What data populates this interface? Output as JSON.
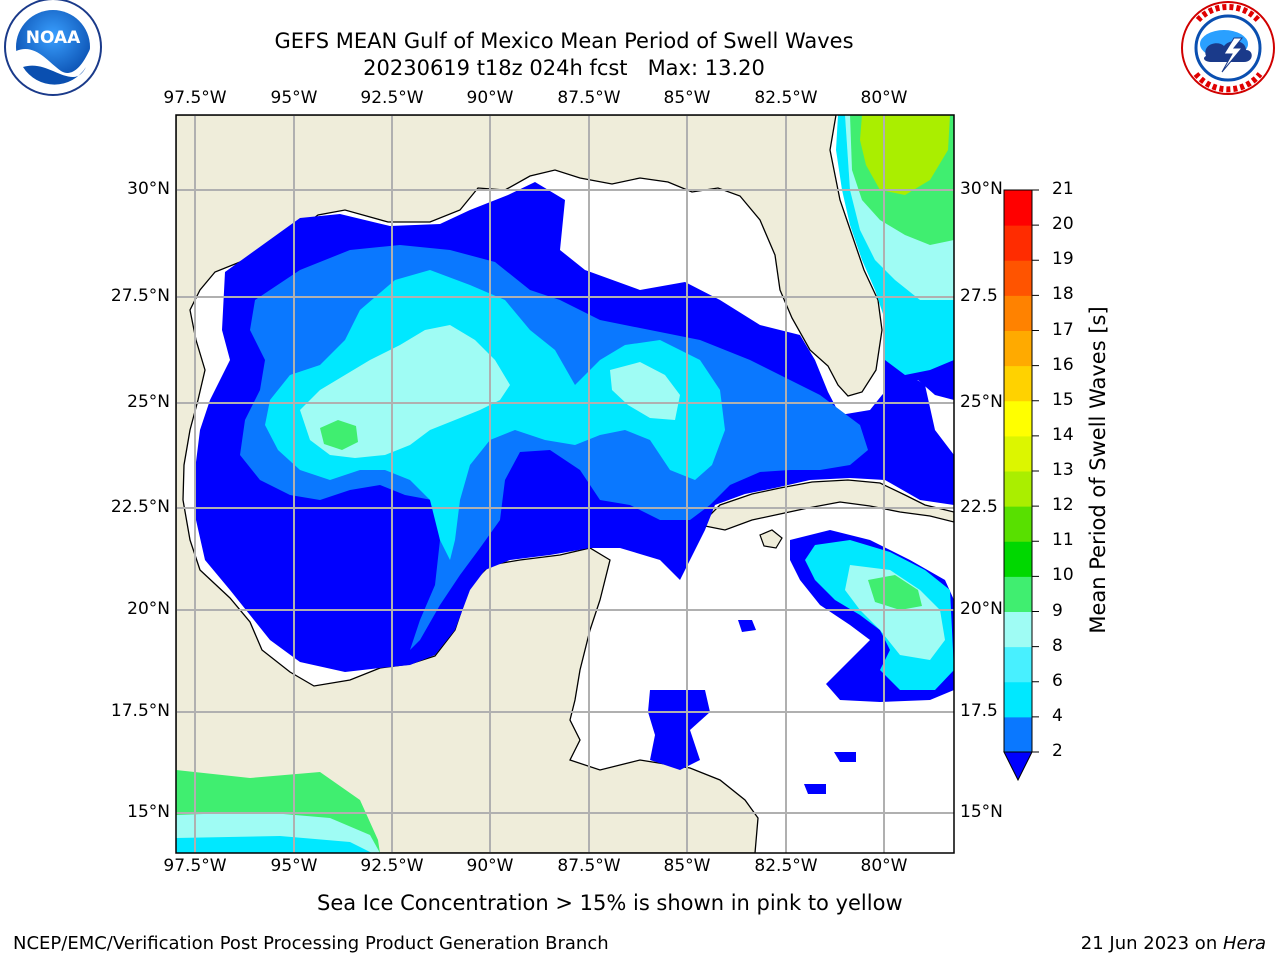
{
  "header": {
    "title_line1": "GEFS MEAN Gulf of Mexico Mean Period of Swell Waves",
    "title_line2": "20230619 t18z 024h fcst   Max: 13.20"
  },
  "logos": {
    "left": {
      "name": "NOAA",
      "ring_text": "NATIONAL OCEANIC AND ATMOSPHERIC ADMINISTRATION · U.S. DEPARTMENT OF COMMERCE"
    },
    "right": {
      "name": "NATIONAL WEATHER SERVICE"
    }
  },
  "map": {
    "lon_ticks": [
      "97.5°W",
      "95°W",
      "92.5°W",
      "90°W",
      "87.5°W",
      "85°W",
      "82.5°W",
      "80°W"
    ],
    "lat_ticks_left": [
      "30°N",
      "27.5°N",
      "25°N",
      "22.5°N",
      "20°N",
      "17.5°N",
      "15°N"
    ],
    "lat_ticks_right": [
      "30°N",
      "27.5",
      "25°N",
      "22.5",
      "20°N",
      "17.5",
      "15°N"
    ],
    "extent": {
      "lon_min": -98,
      "lon_max": -78.3,
      "lat_min": 14.0,
      "lat_max": 31.8
    },
    "colors": {
      "land": "#efedda",
      "ocean_none": "#ffffff",
      "grid": "#b0b0b0",
      "coast": "#000000"
    }
  },
  "colorbar": {
    "label": "Mean Period of Swell Waves [s]",
    "ticks": [
      "2",
      "4",
      "6",
      "8",
      "9",
      "10",
      "11",
      "12",
      "13",
      "14",
      "15",
      "16",
      "17",
      "18",
      "19",
      "20",
      "21"
    ],
    "colors": [
      "#0000ff",
      "#0a78ff",
      "#00e8ff",
      "#48f0ff",
      "#9ffcf4",
      "#40ee70",
      "#00d800",
      "#58e000",
      "#aaee00",
      "#dcf600",
      "#ffff00",
      "#ffd200",
      "#ffaa00",
      "#ff8200",
      "#ff5400",
      "#ff2c00",
      "#ff0000"
    ]
  },
  "footer": {
    "note": "Sea Ice Concentration > 15% is shown in pink to yellow",
    "credit": "NCEP/EMC/Verification Post Processing Product Generation Branch",
    "date": "21 Jun 2023 on ",
    "host": "Hera"
  }
}
